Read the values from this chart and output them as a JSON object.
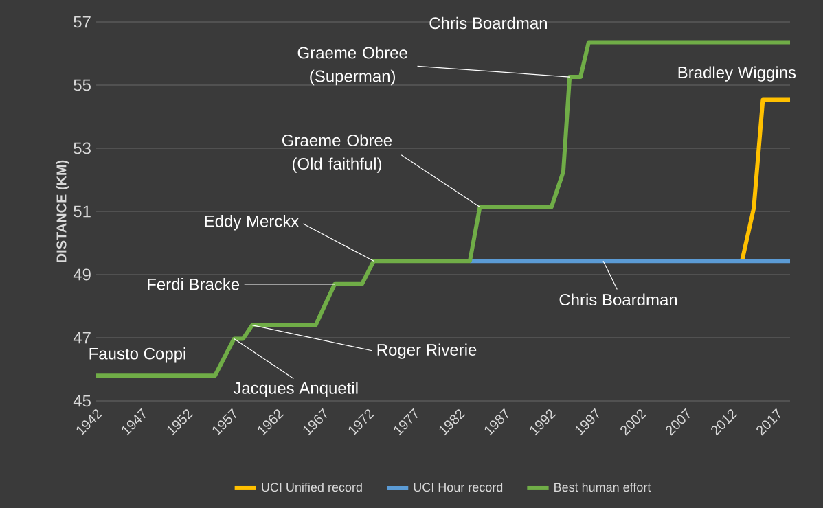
{
  "chart_data": {
    "type": "line",
    "ylabel": "DISTANCE (KM)",
    "xlim": [
      1942,
      2018.5
    ],
    "xticks": [
      1942,
      1947,
      1952,
      1957,
      1962,
      1967,
      1972,
      1977,
      1982,
      1987,
      1992,
      1997,
      2002,
      2007,
      2012,
      2017
    ],
    "ylim": [
      45,
      57
    ],
    "yticks": [
      45,
      47,
      49,
      51,
      53,
      55,
      57
    ],
    "grid": "y",
    "legend": "bottom",
    "series": [
      {
        "name": "UCI Unified record",
        "color": "#ffc000",
        "x": [
          2013.2,
          2014.5,
          2015.5,
          2018.5
        ],
        "values": [
          49.43,
          51.1,
          54.53,
          54.53
        ]
      },
      {
        "name": "UCI Hour record",
        "color": "#5b9bd5",
        "x": [
          1983.2,
          2018.5
        ],
        "values": [
          49.43,
          49.43
        ]
      },
      {
        "name": "Best human effort",
        "color": "#70ad47",
        "x": [
          1942,
          1955.1,
          1957.2,
          1958.2,
          1959.2,
          1966.2,
          1968.3,
          1971.3,
          1972.6,
          1983.2,
          1984.3,
          1992.2,
          1993.5,
          1994.2,
          1995.4,
          1996.3,
          2018.5
        ],
        "values": [
          45.8,
          45.8,
          46.97,
          46.97,
          47.4,
          47.4,
          48.7,
          48.7,
          49.43,
          49.43,
          51.14,
          51.14,
          52.26,
          55.26,
          55.26,
          56.36,
          56.36
        ]
      }
    ],
    "annotations": [
      {
        "text": "Fausto Coppi",
        "x": 1942,
        "y": 45.8
      },
      {
        "text": "Jacques Anquetil",
        "x": 1957.2,
        "y": 46.97
      },
      {
        "text": "Roger Riverie",
        "x": 1959.2,
        "y": 47.4
      },
      {
        "text": "Ferdi Bracke",
        "x": 1968.3,
        "y": 48.7
      },
      {
        "text": "Eddy Merckx",
        "x": 1972.6,
        "y": 49.43
      },
      {
        "text": "Graeme Obree (Old faithful)",
        "x": 1984.3,
        "y": 51.14
      },
      {
        "text": "Graeme Obree (Superman)",
        "x": 1994.2,
        "y": 55.26
      },
      {
        "text": "Chris Boardman",
        "x": 1996.3,
        "y": 56.36
      },
      {
        "text": "Bradley Wiggins",
        "x": 2015.5,
        "y": 54.53
      },
      {
        "text": "Chris Boardman",
        "x": 1997.9,
        "y": 49.43
      }
    ]
  }
}
